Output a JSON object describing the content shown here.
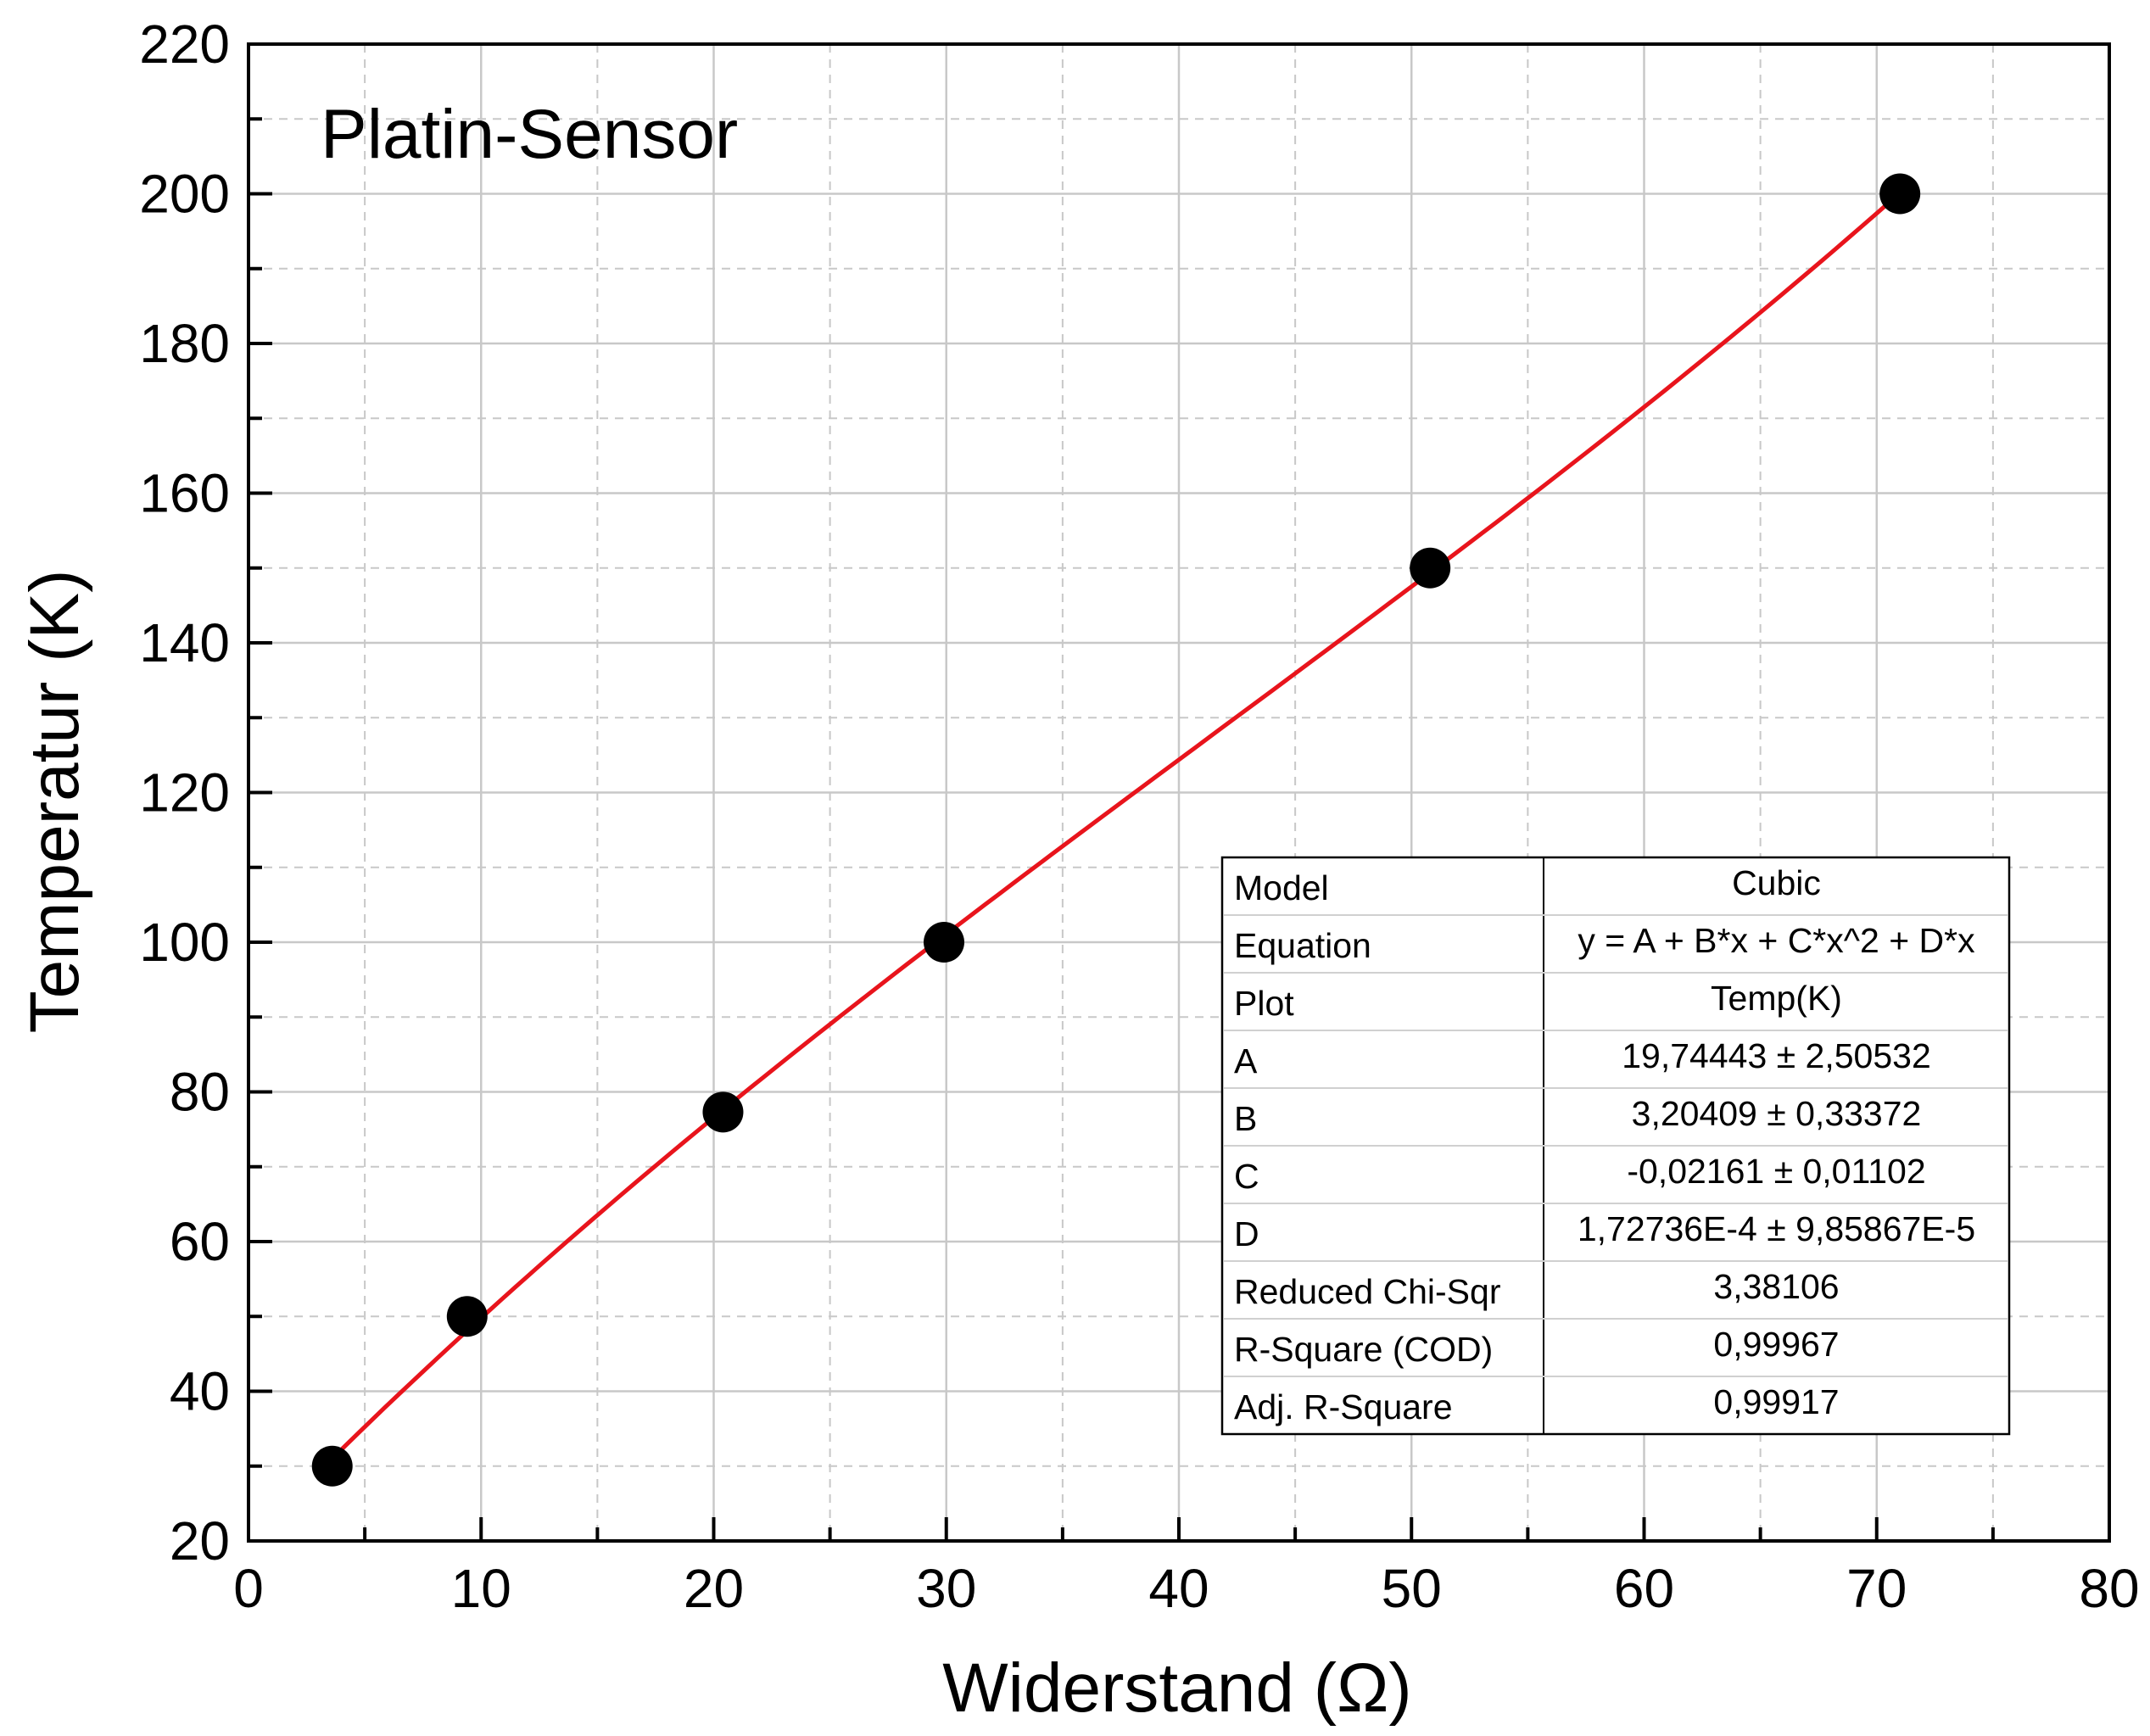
{
  "chart_data": {
    "type": "scatter",
    "title": "Platin-Sensor",
    "xlabel": "Widerstand (Ω)",
    "ylabel": "Temperatur (K)",
    "xlim": [
      0,
      80
    ],
    "ylim": [
      20,
      220
    ],
    "xticks": [
      "0",
      "10",
      "20",
      "30",
      "40",
      "50",
      "60",
      "70",
      "80"
    ],
    "yticks": [
      "20",
      "40",
      "60",
      "80",
      "100",
      "120",
      "140",
      "160",
      "180",
      "200",
      "220"
    ],
    "grid": true,
    "series": [
      {
        "type": "scatter",
        "x": [
          3.6,
          9.4,
          20.4,
          29.9,
          50.8,
          71.0
        ],
        "y": [
          30,
          50,
          77.3,
          100,
          150,
          200
        ]
      },
      {
        "type": "line",
        "fit": "cubic",
        "coefficients": {
          "A": 19.74443,
          "B": 3.20409,
          "C": -0.02161,
          "D": 0.000172736
        },
        "x_range": [
          3.6,
          71.0
        ]
      }
    ],
    "colors": {
      "points": "#000000",
      "fit": "#e8141c",
      "grid": "#c8c8c8",
      "axis": "#000000"
    }
  },
  "fit_table": {
    "rows": [
      {
        "label": "Model",
        "value": "Cubic"
      },
      {
        "label": "Equation",
        "value": "y = A + B*x + C*x^2 + D*x"
      },
      {
        "label": "Plot",
        "value": "Temp(K)"
      },
      {
        "label": "A",
        "value": "19,74443 ± 2,50532"
      },
      {
        "label": "B",
        "value": "3,20409 ± 0,33372"
      },
      {
        "label": "C",
        "value": "-0,02161 ± 0,01102"
      },
      {
        "label": "D",
        "value": "1,72736E-4 ± 9,85867E-5"
      },
      {
        "label": "Reduced Chi-Sqr",
        "value": "3,38106"
      },
      {
        "label": "R-Square (COD)",
        "value": "0,99967"
      },
      {
        "label": "Adj. R-Square",
        "value": "0,99917"
      }
    ]
  }
}
